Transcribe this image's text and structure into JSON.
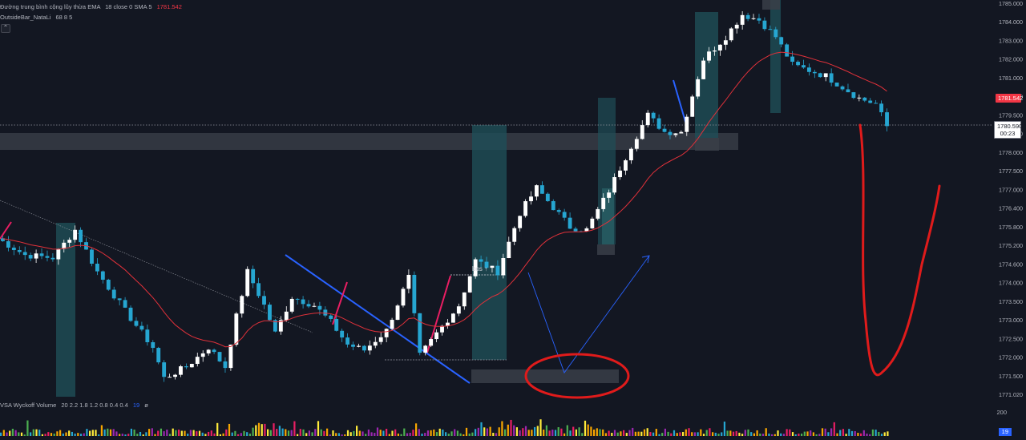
{
  "legend": {
    "ema_name": "Đường trung bình cộng lũy thừa EMA",
    "ema_params": "18 close 0 SMA 5",
    "ema_value": "1781.542",
    "outside_bar": "OutsideBar_NataLi",
    "outside_bar_params": "68 8 5"
  },
  "price_axis": {
    "ticks": [
      "1785.000",
      "1784.000",
      "1783.000",
      "1782.000",
      "1781.000",
      "1780.000",
      "1779.500",
      "1778.500",
      "1778.000",
      "1777.500",
      "1777.000",
      "1776.400",
      "1775.800",
      "1775.200",
      "1774.600",
      "1774.000",
      "1773.500",
      "1773.000",
      "1772.500",
      "1772.000",
      "1771.500",
      "1771.020"
    ],
    "current_price": "1781.542",
    "crosshair_price": "1780.590",
    "countdown": "00:23"
  },
  "annotations": {
    "bos_label": "bos ↑"
  },
  "volume": {
    "name": "VSA Wyckoff Volume",
    "params": "20 2.2 1.8 1.2 0.8 0.4 0.4",
    "value": "19",
    "scale_label": "200",
    "badge": "19"
  },
  "colors": {
    "background": "#131722",
    "candle_up": "#ffffff",
    "candle_down": "#26a6d1",
    "ema_line": "#e0313a",
    "zone_fill": "#1f4f57",
    "demand_zone": "#3a3e48",
    "trend_blue": "#2962ff",
    "drawing_red": "#e01b1b",
    "tag_red": "#f23645"
  },
  "chart_data": {
    "type": "candlestick",
    "ylim": [
      1771.02,
      1785.0
    ],
    "n_bars": 160,
    "key_points": [
      [
        0,
        1776.6
      ],
      [
        5,
        1776.0
      ],
      [
        10,
        1775.9
      ],
      [
        14,
        1776.9
      ],
      [
        18,
        1775.4
      ],
      [
        23,
        1774.0
      ],
      [
        28,
        1772.7
      ],
      [
        30,
        1771.6
      ],
      [
        34,
        1772.0
      ],
      [
        38,
        1772.7
      ],
      [
        41,
        1772.0
      ],
      [
        43,
        1773.8
      ],
      [
        45,
        1775.4
      ],
      [
        48,
        1774.2
      ],
      [
        50,
        1773.2
      ],
      [
        53,
        1774.5
      ],
      [
        57,
        1774.2
      ],
      [
        60,
        1773.6
      ],
      [
        63,
        1772.8
      ],
      [
        66,
        1772.6
      ],
      [
        70,
        1773.3
      ],
      [
        74,
        1775.2
      ],
      [
        76,
        1772.4
      ],
      [
        79,
        1773.2
      ],
      [
        83,
        1774.2
      ],
      [
        86,
        1775.8
      ],
      [
        90,
        1775.4
      ],
      [
        94,
        1777.5
      ],
      [
        97,
        1778.4
      ],
      [
        100,
        1777.7
      ],
      [
        103,
        1777.0
      ],
      [
        106,
        1776.9
      ],
      [
        110,
        1778.3
      ],
      [
        114,
        1779.9
      ],
      [
        117,
        1781.0
      ],
      [
        120,
        1780.4
      ],
      [
        123,
        1780.4
      ],
      [
        127,
        1783.0
      ],
      [
        131,
        1783.8
      ],
      [
        134,
        1784.6
      ],
      [
        137,
        1784.4
      ],
      [
        140,
        1783.8
      ],
      [
        143,
        1782.8
      ],
      [
        146,
        1782.6
      ],
      [
        149,
        1782.4
      ],
      [
        152,
        1782.0
      ],
      [
        155,
        1781.6
      ],
      [
        158,
        1781.4
      ],
      [
        160,
        1780.6
      ]
    ],
    "volume_range": [
      0,
      200
    ]
  }
}
